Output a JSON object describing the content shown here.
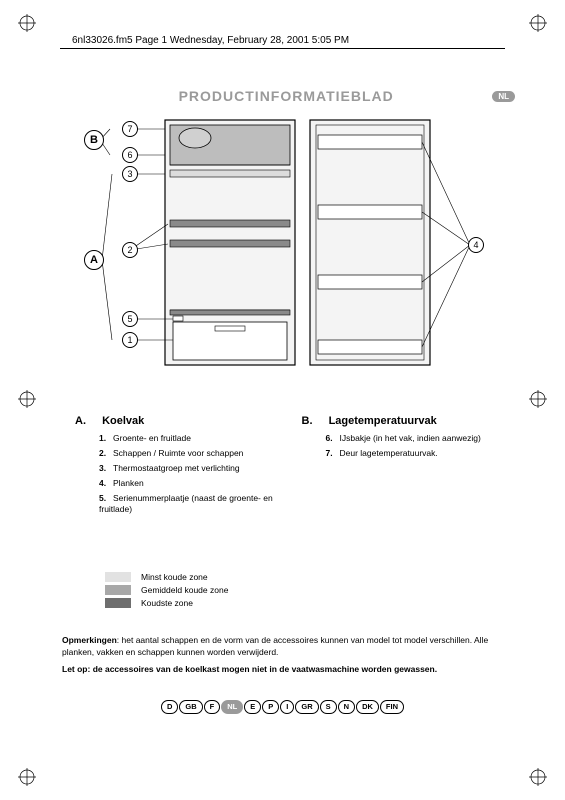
{
  "header": {
    "doc_meta": "6nl33026.fm5  Page 1  Wednesday, February 28, 2001  5:05 PM",
    "title": "PRODUCTINFORMATIEBLAD",
    "lang_badge": "NL"
  },
  "diagram": {
    "labels": {
      "A": "A",
      "B": "B"
    },
    "callouts": [
      "1",
      "2",
      "3",
      "4",
      "5",
      "6",
      "7"
    ],
    "colors": {
      "outline": "#000000",
      "fill_light": "#f4f4f4",
      "shelf": "#8a8a8a",
      "compartment": "#bdbdbd",
      "drawer": "#ffffff"
    }
  },
  "sections": {
    "A": {
      "letter": "A.",
      "title": "Koelvak",
      "items": [
        {
          "n": "1.",
          "t": "Groente- en fruitlade"
        },
        {
          "n": "2.",
          "t": "Schappen / Ruimte voor schappen"
        },
        {
          "n": "3.",
          "t": "Thermostaatgroep met verlichting"
        },
        {
          "n": "4.",
          "t": "Planken"
        },
        {
          "n": "5.",
          "t": "Serienummerplaatje (naast de groente- en fruitlade)"
        }
      ]
    },
    "B": {
      "letter": "B.",
      "title": "Lagetemperatuurvak",
      "items": [
        {
          "n": "6.",
          "t": "IJsbakje (in het vak, indien aanwezig)"
        },
        {
          "n": "7.",
          "t": "Deur lagetemperatuurvak."
        }
      ]
    }
  },
  "legend": {
    "rows": [
      {
        "color": "#e2e2e2",
        "label": "Minst koude zone"
      },
      {
        "color": "#a8a8a8",
        "label": "Gemiddeld koude zone"
      },
      {
        "color": "#6e6e6e",
        "label": "Koudste zone"
      }
    ]
  },
  "notes": {
    "p1_label": "Opmerkingen",
    "p1": ": het aantal schappen en de vorm van de accessoires kunnen van model tot model verschillen. Alle planken, vakken en schappen kunnen worden verwijderd.",
    "p2": "Let op: de accessoires van de koelkast mogen niet in de vaatwasmachine worden gewassen."
  },
  "languages": [
    "D",
    "GB",
    "F",
    "NL",
    "E",
    "P",
    "I",
    "GR",
    "S",
    "N",
    "DK",
    "FIN"
  ],
  "active_language": "NL"
}
